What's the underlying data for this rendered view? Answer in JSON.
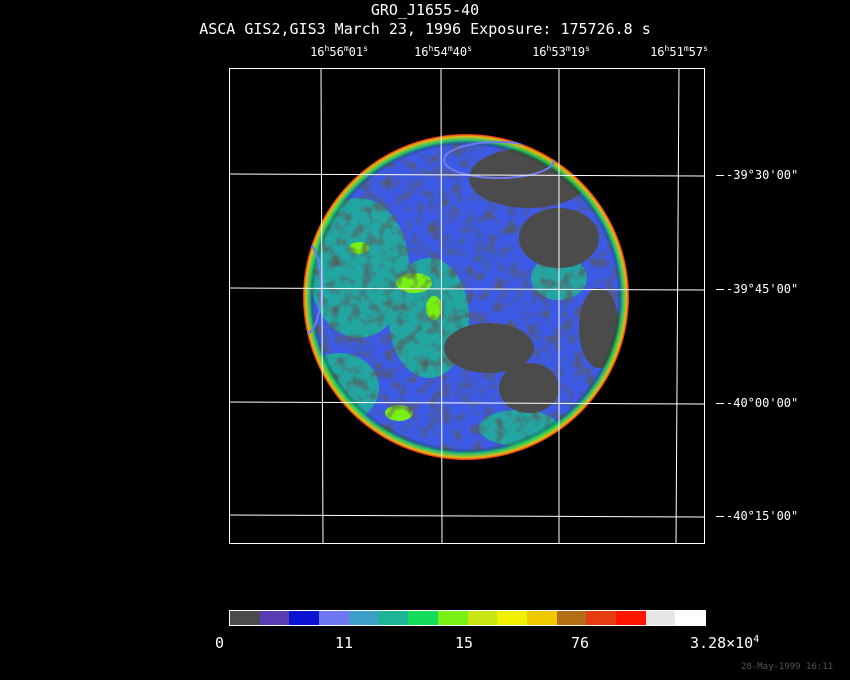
{
  "header": {
    "object_name": "GRO_J1655-40",
    "observation_line": "ASCA GIS2,GIS3 March 23, 1996 Exposure: 175726.8 s"
  },
  "ra_labels": [
    {
      "h": "16",
      "m": "56",
      "s": "01"
    },
    {
      "h": "16",
      "m": "54",
      "s": "40"
    },
    {
      "h": "16",
      "m": "53",
      "s": "19"
    },
    {
      "h": "16",
      "m": "51",
      "s": "57"
    }
  ],
  "dec_labels": [
    "-39°30'00\"",
    "-39°45'00\"",
    "-40°00'00\"",
    "-40°15'00\""
  ],
  "colorbar": {
    "labels": [
      "0",
      "11",
      "15",
      "76"
    ],
    "max_label_mantissa": "3.28×10",
    "max_label_exponent": "4",
    "colors": [
      "#4b4b4b",
      "#5a3cb4",
      "#0a14d2",
      "#6e78f0",
      "#3ca0c8",
      "#1eb496",
      "#14dc5a",
      "#78f014",
      "#c8e614",
      "#f0f000",
      "#f0c800",
      "#b46e14",
      "#e63c14",
      "#ff1400",
      "#e6e6e6",
      "#ffffff"
    ]
  },
  "colors": {
    "background": "#000000",
    "grid": "#ffffff",
    "low": "#4b4b4b",
    "mid": "#3c5ae6",
    "high": "#78f014"
  },
  "footer": {
    "timestamp": "28-May-1999 16:11"
  }
}
